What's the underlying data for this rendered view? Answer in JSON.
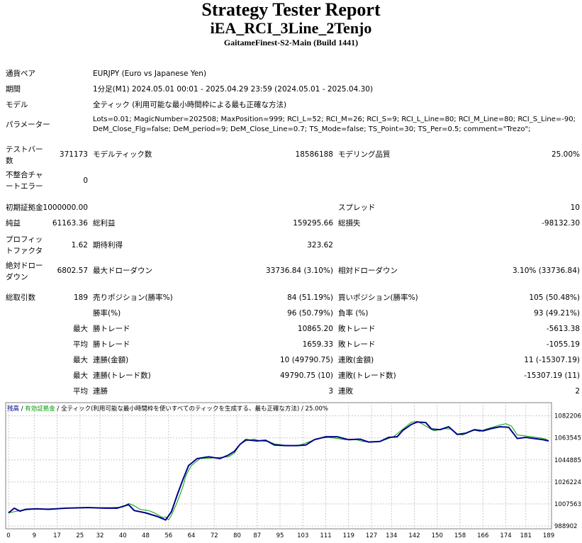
{
  "header": {
    "title": "Strategy Tester Report",
    "ea_name": "iEA_RCI_3Line_2Tenjo",
    "server": "GaitameFinest-S2-Main (Build 1441)"
  },
  "info": {
    "symbol_label": "通貨ペア",
    "symbol_value": "EURJPY (Euro vs Japanese Yen)",
    "period_label": "期間",
    "period_value": "1分足(M1) 2024.05.01 00:01 - 2025.04.29 23:59 (2024.05.01 - 2025.04.30)",
    "model_label": "モデル",
    "model_value": "全ティック (利用可能な最小時間枠による最も正確な方法)",
    "params_label": "パラメーター",
    "params_line1": "Lots=0.01; MagicNumber=202508; MaxPosition=999; RCI_L=52; RCI_M=26; RCI_S=9; RCI_L_Line=80; RCI_M_Line=80; RCI_S_Line=-90;",
    "params_line2": "DeM_Close_Flg=false; DeM_period=9; DeM_Close_Line=0.7; TS_Mode=false; TS_Point=30; TS_Per=0.5; comment=\"Trezo\";"
  },
  "stats": {
    "bars_label": "テストバー数",
    "bars_value": "371173",
    "ticks_label": "モデルティック数",
    "ticks_value": "18586188",
    "quality_label": "モデリング品質",
    "quality_value": "25.00%",
    "mismatch_label": "不整合チャートエラー",
    "mismatch_value": "0",
    "deposit_label": "初期証拠金",
    "deposit_value": "1000000.00",
    "spread_label": "スプレッド",
    "spread_value": "10",
    "net_label": "純益",
    "net_value": "61163.36",
    "gross_profit_label": "総利益",
    "gross_profit_value": "159295.66",
    "gross_loss_label": "総損失",
    "gross_loss_value": "-98132.30",
    "pf_label": "プロフィットファクタ",
    "pf_value": "1.62",
    "expected_label": "期待利得",
    "expected_value": "323.62",
    "abs_dd_label": "絶対ドローダウン",
    "abs_dd_value": "6802.57",
    "max_dd_label": "最大ドローダウン",
    "max_dd_value": "33736.84 (3.10%)",
    "rel_dd_label": "相対ドローダウン",
    "rel_dd_value": "3.10% (33736.84)",
    "trades_label": "総取引数",
    "trades_value": "189",
    "short_label": "売りポジション(勝率%)",
    "short_value": "84 (51.19%)",
    "long_label": "買いポジション(勝率%)",
    "long_value": "105 (50.48%)",
    "win_label": "勝率(%)",
    "win_value": "96 (50.79%)",
    "loss_label": "負率 (%)",
    "loss_value": "93 (49.21%)",
    "max_prefix": "最大",
    "avg_prefix": "平均",
    "largest_win_label": "勝トレード",
    "largest_win_value": "10865.20",
    "largest_loss_label": "敗トレード",
    "largest_loss_value": "-5613.38",
    "avg_win_label": "勝トレード",
    "avg_win_value": "1659.33",
    "avg_loss_label": "敗トレード",
    "avg_loss_value": "-1055.19",
    "max_consec_win_label": "連勝(金額)",
    "max_consec_win_value": "10 (49790.75)",
    "max_consec_loss_label": "連敗(金額)",
    "max_consec_loss_value": "11 (-15307.19)",
    "max_consec_profit_label": "連勝(トレード数)",
    "max_consec_profit_value": "49790.75 (10)",
    "max_consec_loss2_label": "連敗(トレード数)",
    "max_consec_loss2_value": "-15307.19 (11)",
    "avg_consec_win_label": "連勝",
    "avg_consec_win_value": "3",
    "avg_consec_loss_label": "連敗",
    "avg_consec_loss_value": "2"
  },
  "chart_data": {
    "type": "line",
    "legend": {
      "balance": "残高",
      "sep1": " / ",
      "equity": "有効証拠金",
      "sep2": " / ",
      "model": "全ティック(利用可能な最小時間枠を使いすべてのティックを生成する、最も正確な方法)",
      "sep3": " / ",
      "quality": "25.00%"
    },
    "colors": {
      "balance": "#00008B",
      "equity": "#00A000",
      "grid": "#C8C8C8"
    },
    "xlim": [
      0,
      189
    ],
    "ylim": [
      988902,
      1091000
    ],
    "x_ticks": [
      "0",
      "9",
      "17",
      "25",
      "32",
      "40",
      "48",
      "56",
      "64",
      "72",
      "80",
      "87",
      "95",
      "103",
      "111",
      "119",
      "127",
      "134",
      "142",
      "150",
      "158",
      "166",
      "174",
      "181",
      "189"
    ],
    "y_ticks": [
      "1082206",
      "1063545",
      "1044885",
      "1026224",
      "1007563",
      "988902"
    ],
    "balance": [
      [
        0,
        1000000
      ],
      [
        2,
        1004000
      ],
      [
        4,
        1001500
      ],
      [
        6,
        1003000
      ],
      [
        10,
        1003500
      ],
      [
        14,
        1003000
      ],
      [
        20,
        1004000
      ],
      [
        28,
        1004500
      ],
      [
        34,
        1004000
      ],
      [
        38,
        1004000
      ],
      [
        42,
        1007000
      ],
      [
        44,
        1002000
      ],
      [
        48,
        1000000
      ],
      [
        52,
        997000
      ],
      [
        55,
        994000
      ],
      [
        57,
        1001000
      ],
      [
        59,
        1015000
      ],
      [
        61,
        1028000
      ],
      [
        63,
        1040000
      ],
      [
        66,
        1046000
      ],
      [
        70,
        1047500
      ],
      [
        74,
        1046000
      ],
      [
        77,
        1049000
      ],
      [
        79,
        1052000
      ],
      [
        81,
        1058000
      ],
      [
        83,
        1062000
      ],
      [
        87,
        1061000
      ],
      [
        90,
        1061500
      ],
      [
        93,
        1057500
      ],
      [
        97,
        1057000
      ],
      [
        101,
        1057000
      ],
      [
        104,
        1057500
      ],
      [
        107,
        1062000
      ],
      [
        111,
        1064500
      ],
      [
        115,
        1064500
      ],
      [
        119,
        1062000
      ],
      [
        123,
        1062500
      ],
      [
        126,
        1060000
      ],
      [
        130,
        1060500
      ],
      [
        133,
        1064000
      ],
      [
        136,
        1064500
      ],
      [
        138,
        1070000
      ],
      [
        141,
        1075000
      ],
      [
        143,
        1077000
      ],
      [
        146,
        1076500
      ],
      [
        148,
        1071000
      ],
      [
        151,
        1070500
      ],
      [
        154,
        1073000
      ],
      [
        157,
        1066500
      ],
      [
        160,
        1067500
      ],
      [
        163,
        1070500
      ],
      [
        166,
        1069500
      ],
      [
        169,
        1071500
      ],
      [
        172,
        1073000
      ],
      [
        175,
        1072500
      ],
      [
        178,
        1063000
      ],
      [
        181,
        1064000
      ],
      [
        184,
        1063000
      ],
      [
        187,
        1062000
      ],
      [
        189,
        1061000
      ]
    ],
    "equity": [
      [
        0,
        1000000
      ],
      [
        2,
        1001000
      ],
      [
        4,
        1002000
      ],
      [
        8,
        1003000
      ],
      [
        14,
        1003500
      ],
      [
        22,
        1004000
      ],
      [
        30,
        1004500
      ],
      [
        36,
        1004500
      ],
      [
        40,
        1005000
      ],
      [
        42,
        1008000
      ],
      [
        44,
        1006000
      ],
      [
        46,
        1003000
      ],
      [
        49,
        1002000
      ],
      [
        51,
        1000000
      ],
      [
        54,
        996000
      ],
      [
        55,
        996500
      ],
      [
        56,
        994000
      ],
      [
        57,
        998000
      ],
      [
        59,
        1009000
      ],
      [
        61,
        1022000
      ],
      [
        62,
        1031000
      ],
      [
        63,
        1036000
      ],
      [
        64,
        1040000
      ],
      [
        67,
        1046000
      ],
      [
        71,
        1046500
      ],
      [
        74,
        1047000
      ],
      [
        77,
        1047500
      ],
      [
        79,
        1050500
      ],
      [
        81,
        1058000
      ],
      [
        83,
        1061000
      ],
      [
        86,
        1062500
      ],
      [
        88,
        1061000
      ],
      [
        91,
        1060500
      ],
      [
        93,
        1058500
      ],
      [
        96,
        1057500
      ],
      [
        99,
        1057000
      ],
      [
        102,
        1057500
      ],
      [
        105,
        1060000
      ],
      [
        108,
        1063000
      ],
      [
        112,
        1064000
      ],
      [
        115,
        1063000
      ],
      [
        118,
        1062000
      ],
      [
        121,
        1062500
      ],
      [
        124,
        1060500
      ],
      [
        127,
        1060000
      ],
      [
        130,
        1060500
      ],
      [
        133,
        1063000
      ],
      [
        135,
        1065000
      ],
      [
        137,
        1069000
      ],
      [
        139,
        1073000
      ],
      [
        141,
        1077000
      ],
      [
        143,
        1077500
      ],
      [
        145,
        1075000
      ],
      [
        147,
        1072000
      ],
      [
        149,
        1069500
      ],
      [
        152,
        1071500
      ],
      [
        155,
        1071000
      ],
      [
        157,
        1066500
      ],
      [
        159,
        1066000
      ],
      [
        161,
        1068500
      ],
      [
        163,
        1070000
      ],
      [
        165,
        1069000
      ],
      [
        167,
        1071000
      ],
      [
        170,
        1073000
      ],
      [
        172,
        1074500
      ],
      [
        174,
        1075500
      ],
      [
        176,
        1073500
      ],
      [
        178,
        1066000
      ],
      [
        180,
        1065500
      ],
      [
        183,
        1064500
      ],
      [
        186,
        1063500
      ],
      [
        188,
        1062500
      ],
      [
        189,
        1061000
      ]
    ]
  }
}
